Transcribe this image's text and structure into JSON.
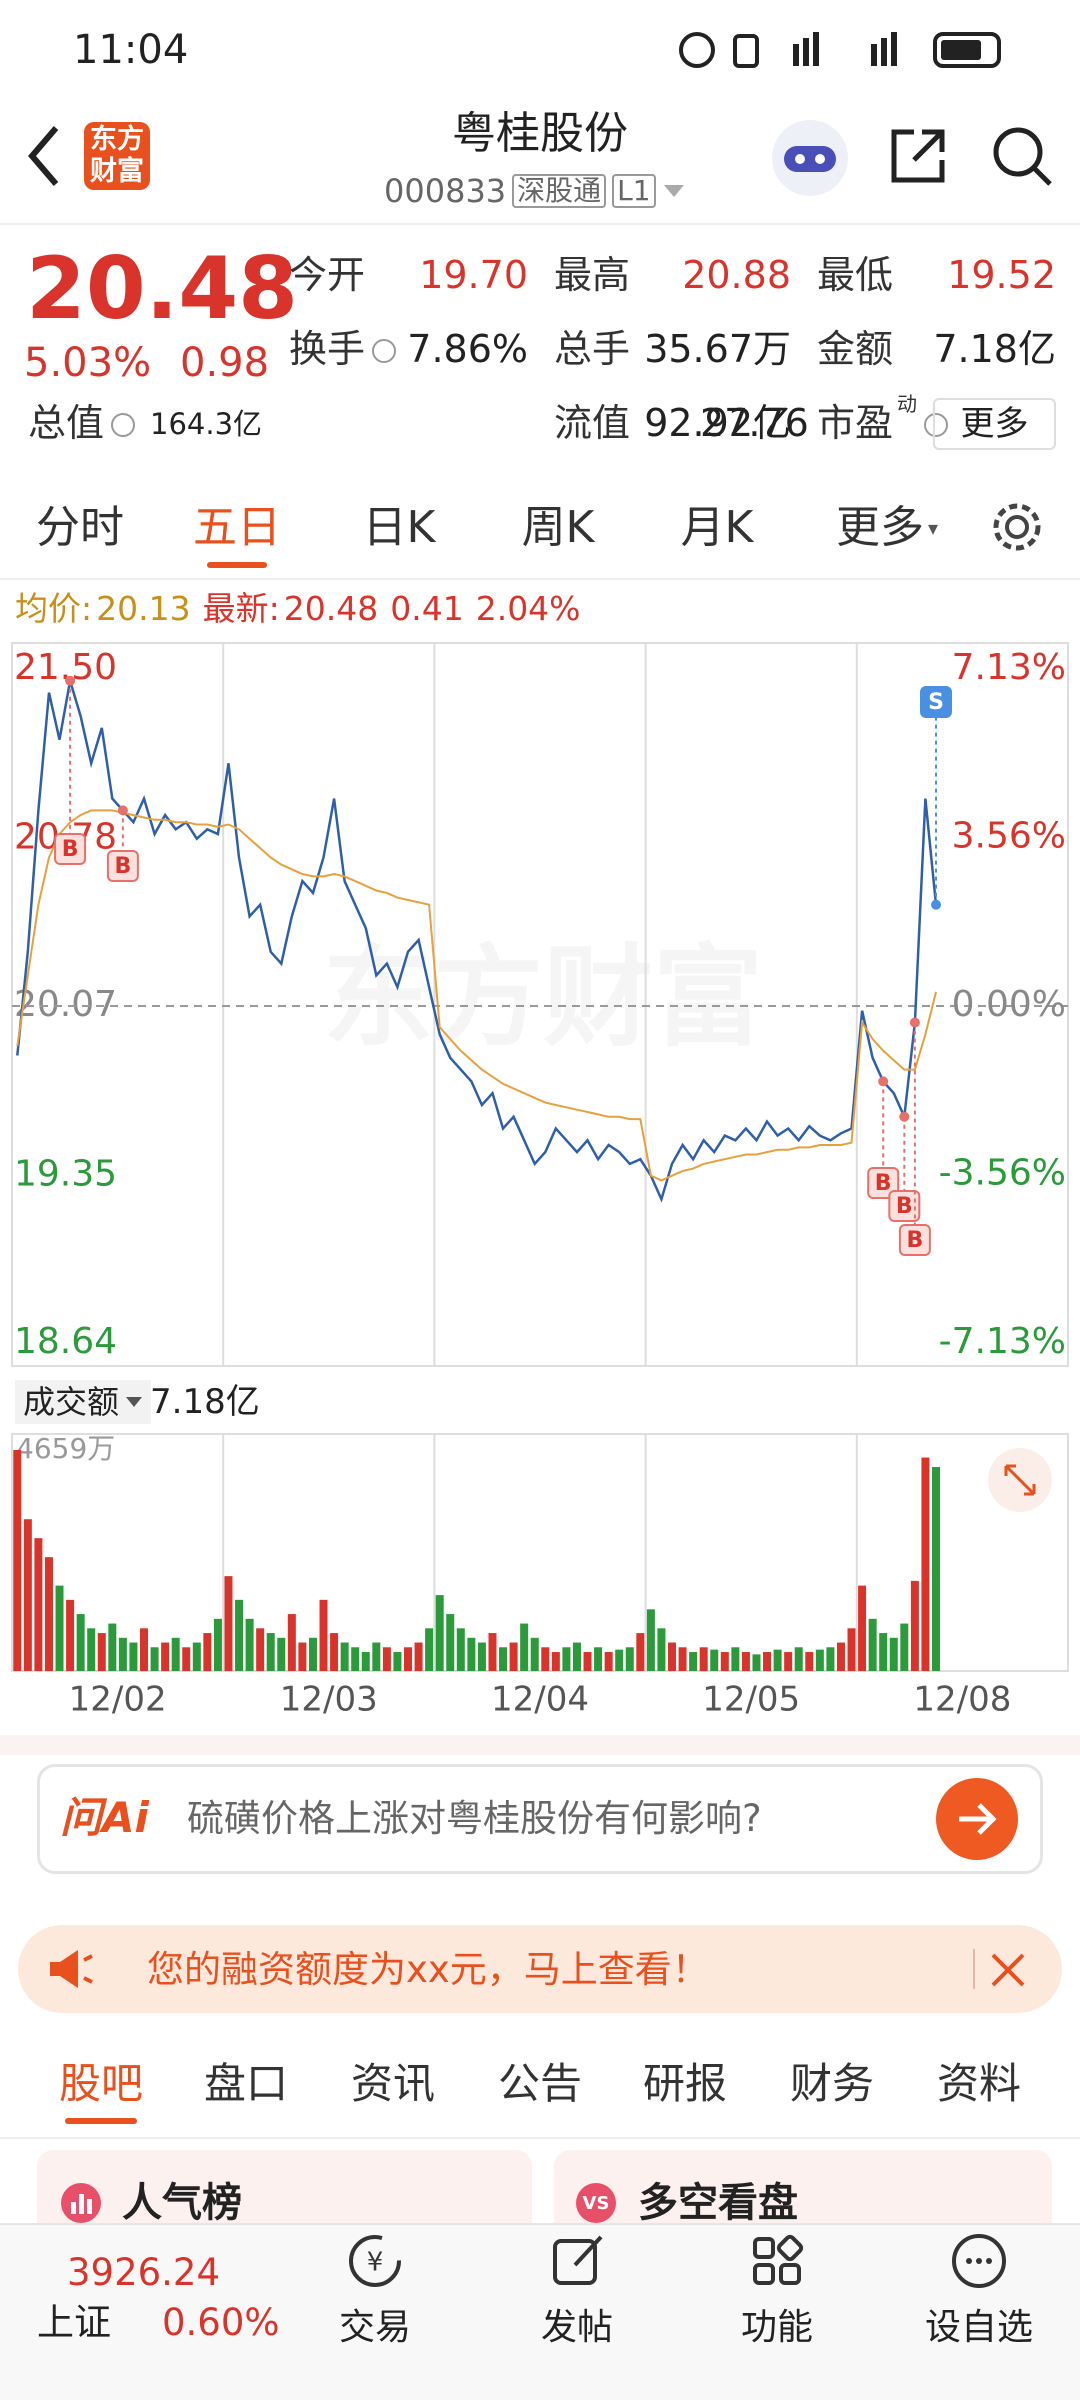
{
  "status_bar": {
    "time": "11:04"
  },
  "header": {
    "logo": "东方财富",
    "title": "粤桂股份",
    "code": "000833",
    "tag": "深股通",
    "level": "L1"
  },
  "quote": {
    "price": "20.48",
    "change_pct": "5.03%",
    "change": "0.98",
    "fields": [
      {
        "label": "今开",
        "value": "19.70"
      },
      {
        "label": "最高",
        "value": "20.88"
      },
      {
        "label": "最低",
        "value": "19.52"
      },
      {
        "label": "换手",
        "value": "7.86%"
      },
      {
        "label": "总手",
        "value": "35.67万"
      },
      {
        "label": "金额",
        "value": "7.18亿"
      },
      {
        "label": "总值",
        "value": "164.3亿"
      },
      {
        "label": "流值",
        "value": "92.92亿"
      },
      {
        "label": "市盈",
        "sup": "动",
        "value": "27.76"
      }
    ],
    "more": "更多"
  },
  "tabs": {
    "items": [
      "分时",
      "五日",
      "日K",
      "周K",
      "月K",
      "更多"
    ],
    "active": 1
  },
  "info_line": {
    "avg_label": "均价:",
    "avg": "20.13",
    "last_label": "最新:",
    "last": "20.48",
    "change": "0.41",
    "change_pct": "2.04%"
  },
  "price_chart": {
    "type": "line",
    "watermark": "东方财富",
    "categories": [
      "12/02",
      "12/03",
      "12/04",
      "12/05",
      "12/08"
    ],
    "ylim": [
      18.64,
      21.5
    ],
    "yticks": [
      {
        "value": 21.5,
        "label": "21.50"
      },
      {
        "value": 20.78,
        "label": "20.78"
      },
      {
        "value": 20.07,
        "label": "20.07"
      },
      {
        "value": 19.35,
        "label": "19.35"
      },
      {
        "value": 18.64,
        "label": "18.64"
      }
    ],
    "y2lim": [
      -7.13,
      7.13
    ],
    "y2ticks": [
      {
        "value": 7.13,
        "label": "7.13%"
      },
      {
        "value": 3.56,
        "label": "3.56%"
      },
      {
        "value": 0,
        "label": "0.00%"
      },
      {
        "value": -3.56,
        "label": "-3.56%"
      },
      {
        "value": -7.13,
        "label": "-7.13%"
      }
    ],
    "series": [
      {
        "color": "#2f5fa8",
        "values": [
          19.86,
          20.3,
          20.9,
          21.4,
          21.2,
          21.45,
          21.3,
          21.1,
          21.25,
          20.95,
          20.9,
          20.85,
          20.95,
          20.8,
          20.88,
          20.82,
          20.85,
          20.78,
          20.82,
          20.8,
          21.1,
          20.7,
          20.45,
          20.5,
          20.3,
          20.25,
          20.45,
          20.6,
          20.55,
          20.7,
          20.95,
          20.6,
          20.5,
          20.4,
          20.2,
          20.25,
          20.15,
          20.3,
          20.35,
          20.15,
          19.95,
          19.85,
          19.8,
          19.75,
          19.65,
          19.7,
          19.55,
          19.6,
          19.5,
          19.4,
          19.45,
          19.55,
          19.5,
          19.45,
          19.5,
          19.42,
          19.48,
          19.45,
          19.4,
          19.42,
          19.35,
          19.25,
          19.4,
          19.48,
          19.42,
          19.5,
          19.45,
          19.52,
          19.5,
          19.55,
          19.5,
          19.58,
          19.52,
          19.55,
          19.5,
          19.56,
          19.52,
          19.5,
          19.53,
          19.55,
          20.05,
          19.85,
          19.75,
          19.7,
          19.6,
          20.0,
          20.95,
          20.5
        ]
      },
      {
        "color": "#e8a03c",
        "values": [
          19.9,
          20.2,
          20.5,
          20.7,
          20.8,
          20.85,
          20.88,
          20.9,
          20.9,
          20.9,
          20.89,
          20.88,
          20.87,
          20.86,
          20.86,
          20.85,
          20.85,
          20.84,
          20.84,
          20.83,
          20.84,
          20.82,
          20.78,
          20.74,
          20.7,
          20.67,
          20.65,
          20.63,
          20.62,
          20.62,
          20.63,
          20.62,
          20.6,
          20.58,
          20.56,
          20.55,
          20.53,
          20.52,
          20.51,
          20.5,
          19.98,
          19.93,
          19.88,
          19.84,
          19.8,
          19.77,
          19.74,
          19.72,
          19.7,
          19.68,
          19.66,
          19.65,
          19.64,
          19.63,
          19.62,
          19.61,
          19.6,
          19.6,
          19.59,
          19.59,
          19.35,
          19.33,
          19.35,
          19.37,
          19.38,
          19.4,
          19.41,
          19.42,
          19.43,
          19.44,
          19.44,
          19.45,
          19.46,
          19.46,
          19.47,
          19.47,
          19.48,
          19.48,
          19.48,
          19.49,
          20.0,
          19.93,
          19.88,
          19.84,
          19.8,
          19.8,
          19.95,
          20.13
        ]
      }
    ],
    "trade_marks": [
      "B",
      "B",
      "B",
      "B",
      "B",
      "S"
    ]
  },
  "volume_chart": {
    "type": "bar",
    "label": "成交额",
    "total": "7.18亿",
    "ylim": [
      0,
      4659
    ],
    "yticks": [
      {
        "value": 4659,
        "label": "4659万"
      }
    ],
    "up_color": "#d9342b",
    "down_color": "#2a9a3a",
    "values": [
      4659,
      3200,
      2800,
      2400,
      1800,
      1500,
      1200,
      900,
      800,
      1000,
      700,
      600,
      900,
      500,
      600,
      700,
      500,
      600,
      800,
      1100,
      2000,
      1500,
      1100,
      900,
      800,
      700,
      1200,
      600,
      700,
      1500,
      800,
      600,
      500,
      400,
      600,
      500,
      400,
      500,
      600,
      900,
      1600,
      1200,
      900,
      700,
      600,
      800,
      500,
      600,
      1000,
      700,
      500,
      400,
      500,
      600,
      400,
      500,
      400,
      450,
      500,
      800,
      1300,
      900,
      600,
      500,
      400,
      500,
      450,
      400,
      500,
      400,
      350,
      400,
      450,
      400,
      500,
      400,
      450,
      500,
      600,
      900,
      1800,
      1100,
      800,
      700,
      1000,
      1900,
      4500,
      4300
    ]
  },
  "ai_box": {
    "brand": "问Ai",
    "question": "硫磺价格上涨对粤桂股份有何影响?"
  },
  "banner": {
    "text": "您的融资额度为xx元，马上查看！"
  },
  "sub_tabs": {
    "items": [
      "股吧",
      "盘口",
      "资讯",
      "公告",
      "研报",
      "财务",
      "资料"
    ],
    "active": 0
  },
  "cards": [
    "人气榜",
    "多空看盘"
  ],
  "bottom_nav": {
    "index_value": "3926.24",
    "index_name": "上证",
    "index_change": "0.60%",
    "items": [
      "交易",
      "发帖",
      "功能",
      "设自选"
    ]
  }
}
